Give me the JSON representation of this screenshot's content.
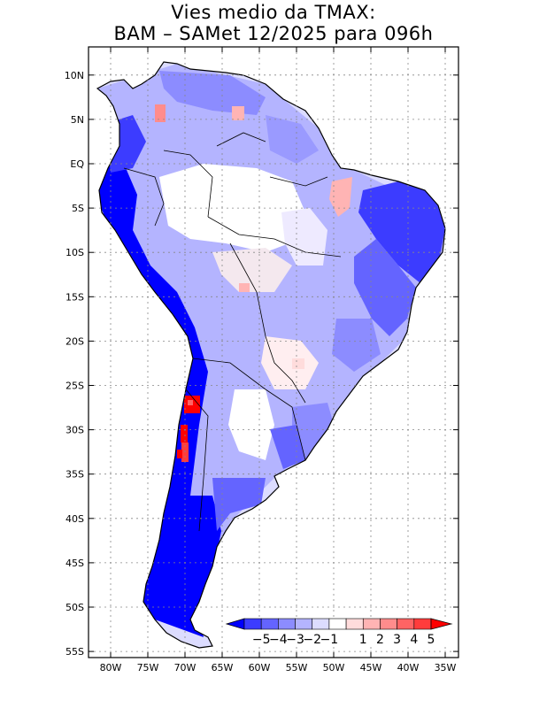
{
  "title": {
    "line1": "Vies medio da TMAX:",
    "line2": "BAM – SAMet 12/2025  para 096h"
  },
  "axes": {
    "lat_labels": [
      "10N",
      "5N",
      "EQ",
      "5S",
      "10S",
      "15S",
      "20S",
      "25S",
      "30S",
      "35S",
      "40S",
      "45S",
      "50S",
      "55S"
    ],
    "lon_labels": [
      "80W",
      "75W",
      "70W",
      "65W",
      "60W",
      "55W",
      "50W",
      "45W",
      "40W",
      "35W"
    ],
    "lat_range": [
      -55.5,
      13
    ],
    "lon_range": [
      -84,
      -34
    ]
  },
  "colorbar": {
    "labels": [
      "-5",
      "-4",
      "-3",
      "-2",
      "-1",
      "1",
      "2",
      "3",
      "4",
      "5"
    ],
    "colors": [
      "#0000ff",
      "#3c3cff",
      "#6464ff",
      "#8c8cff",
      "#b4b4ff",
      "#dcdcff",
      "#ffffff",
      "#ffdcdc",
      "#ffb4b4",
      "#ff8c8c",
      "#ff6464",
      "#ff3c3c",
      "#ff0000"
    ]
  }
}
